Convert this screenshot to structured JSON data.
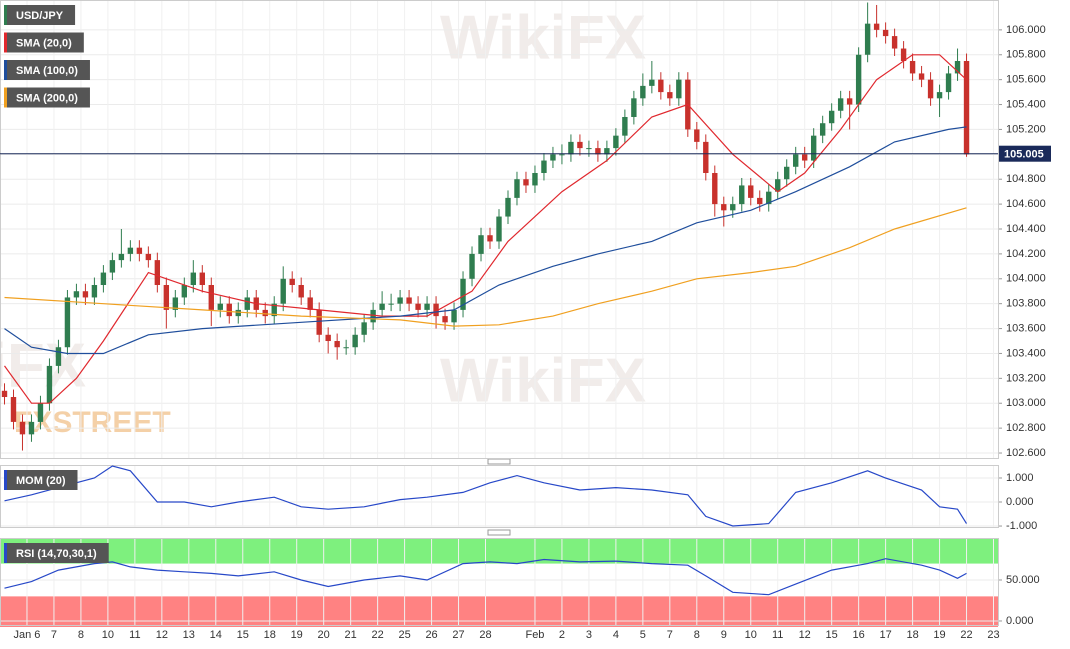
{
  "chart_data": [
    {
      "type": "candlestick",
      "title": "USD/JPY",
      "up_color": "#2f7d4f",
      "down_color": "#c8312c",
      "watermark": "WikiFX",
      "logo": "FXSTREET",
      "open": [
        103.1,
        103.05,
        102.85,
        102.75,
        102.85,
        103.0,
        103.3,
        103.45,
        103.85,
        103.9,
        103.85,
        103.95,
        104.05,
        104.15,
        104.2,
        104.25,
        104.2,
        104.15,
        103.95,
        103.75,
        103.85,
        103.95,
        104.05,
        103.95,
        103.75,
        103.8,
        103.7,
        103.75,
        103.85,
        103.75,
        103.7,
        103.8,
        104.0,
        103.95,
        103.85,
        103.75,
        103.55,
        103.5,
        103.45,
        103.45,
        103.55,
        103.65,
        103.75,
        103.8,
        103.8,
        103.85,
        103.8,
        103.75,
        103.8,
        103.7,
        103.65,
        103.75,
        104.0,
        104.2,
        104.35,
        104.3,
        104.5,
        104.65,
        104.8,
        104.75,
        104.85,
        104.95,
        105.0,
        105.0,
        105.1,
        105.05,
        105.05,
        105.0,
        105.05,
        105.15,
        105.3,
        105.45,
        105.55,
        105.6,
        105.5,
        105.45,
        105.6,
        105.2,
        105.1,
        104.85,
        104.6,
        104.55,
        104.6,
        104.75,
        104.65,
        104.6,
        104.7,
        104.8,
        104.9,
        105.0,
        104.95,
        105.15,
        105.25,
        105.35,
        105.45,
        105.4,
        105.8,
        106.05,
        106.0,
        105.95,
        105.85,
        105.75,
        105.65,
        105.6,
        105.45,
        105.5,
        105.65,
        105.75
      ],
      "high": [
        103.16,
        103.11,
        102.91,
        102.91,
        103.06,
        103.36,
        103.51,
        103.91,
        103.96,
        103.96,
        104.01,
        104.11,
        104.21,
        104.4,
        104.31,
        104.31,
        104.26,
        104.21,
        104.01,
        103.91,
        104.01,
        104.15,
        104.11,
        104.01,
        103.86,
        103.86,
        103.81,
        103.91,
        103.91,
        103.81,
        103.86,
        104.1,
        104.06,
        104.01,
        103.91,
        103.81,
        103.61,
        103.56,
        103.51,
        103.61,
        103.71,
        103.81,
        103.9,
        103.88,
        103.91,
        103.91,
        103.86,
        103.86,
        103.86,
        103.76,
        103.81,
        104.06,
        104.26,
        104.41,
        104.41,
        104.56,
        104.71,
        104.86,
        104.86,
        104.91,
        105.01,
        105.06,
        105.08,
        105.16,
        105.16,
        105.11,
        105.11,
        105.11,
        105.21,
        105.36,
        105.51,
        105.65,
        105.75,
        105.66,
        105.56,
        105.66,
        105.66,
        105.26,
        105.16,
        104.91,
        104.66,
        104.66,
        104.81,
        104.81,
        104.71,
        104.76,
        104.86,
        104.96,
        105.06,
        105.06,
        105.21,
        105.31,
        105.41,
        105.51,
        105.51,
        105.86,
        106.22,
        106.2,
        106.06,
        106.01,
        105.91,
        105.81,
        105.71,
        105.66,
        105.56,
        105.71,
        105.85,
        105.81
      ],
      "low": [
        102.99,
        102.79,
        102.62,
        102.69,
        102.79,
        102.94,
        103.24,
        103.39,
        103.79,
        103.79,
        103.79,
        103.89,
        103.99,
        104.09,
        104.14,
        104.14,
        104.09,
        103.89,
        103.6,
        103.69,
        103.79,
        103.89,
        103.89,
        103.62,
        103.69,
        103.64,
        103.64,
        103.69,
        103.69,
        103.64,
        103.64,
        103.74,
        103.89,
        103.79,
        103.69,
        103.49,
        103.4,
        103.35,
        103.39,
        103.39,
        103.49,
        103.59,
        103.69,
        103.74,
        103.74,
        103.74,
        103.69,
        103.69,
        103.6,
        103.59,
        103.59,
        103.69,
        103.94,
        104.14,
        104.24,
        104.24,
        104.44,
        104.59,
        104.69,
        104.69,
        104.79,
        104.89,
        104.92,
        104.94,
        104.99,
        104.98,
        104.94,
        104.94,
        104.99,
        105.09,
        105.24,
        105.39,
        105.49,
        105.44,
        105.39,
        105.39,
        105.14,
        105.04,
        104.79,
        104.5,
        104.42,
        104.49,
        104.54,
        104.59,
        104.54,
        104.54,
        104.64,
        104.74,
        104.84,
        104.89,
        104.89,
        105.09,
        105.19,
        105.29,
        105.2,
        105.34,
        105.74,
        105.94,
        105.89,
        105.79,
        105.69,
        105.59,
        105.54,
        105.39,
        105.3,
        105.44,
        105.59,
        104.98
      ],
      "close": [
        103.05,
        102.85,
        102.75,
        102.85,
        103.0,
        103.3,
        103.45,
        103.85,
        103.9,
        103.85,
        103.95,
        104.05,
        104.15,
        104.2,
        104.25,
        104.2,
        104.15,
        103.95,
        103.75,
        103.85,
        103.95,
        104.05,
        103.95,
        103.75,
        103.8,
        103.7,
        103.75,
        103.85,
        103.75,
        103.7,
        103.8,
        104.0,
        103.95,
        103.85,
        103.75,
        103.55,
        103.5,
        103.45,
        103.45,
        103.55,
        103.65,
        103.75,
        103.8,
        103.8,
        103.85,
        103.8,
        103.75,
        103.8,
        103.7,
        103.65,
        103.75,
        104.0,
        104.2,
        104.35,
        104.3,
        104.5,
        104.65,
        104.8,
        104.75,
        104.85,
        104.95,
        105.0,
        105.0,
        105.1,
        105.05,
        105.05,
        105.0,
        105.05,
        105.15,
        105.3,
        105.45,
        105.55,
        105.6,
        105.5,
        105.45,
        105.6,
        105.2,
        105.1,
        104.85,
        104.6,
        104.55,
        104.6,
        104.75,
        104.65,
        104.6,
        104.7,
        104.8,
        104.9,
        105.0,
        104.95,
        105.15,
        105.25,
        105.35,
        105.45,
        105.4,
        105.8,
        106.05,
        106.0,
        105.95,
        105.85,
        105.75,
        105.65,
        105.6,
        105.45,
        105.5,
        105.65,
        105.75,
        105.0
      ],
      "series": [
        {
          "name": "SMA (20,0)",
          "color": "#e0282e",
          "x": [
            0,
            3,
            5,
            8,
            11,
            16,
            22,
            28,
            35,
            42,
            47,
            52,
            56,
            62,
            67,
            72,
            76,
            81,
            86,
            89,
            93,
            97,
            101,
            104,
            107
          ],
          "values": [
            103.3,
            103.0,
            103.0,
            103.2,
            103.5,
            104.05,
            103.9,
            103.8,
            103.75,
            103.7,
            103.7,
            103.9,
            104.3,
            104.7,
            104.95,
            105.3,
            105.4,
            105.0,
            104.7,
            104.85,
            105.2,
            105.6,
            105.8,
            105.8,
            105.6
          ]
        },
        {
          "name": "SMA (100,0)",
          "color": "#1f4e9c",
          "x": [
            0,
            3,
            7,
            11,
            16,
            22,
            33,
            44,
            50,
            55,
            61,
            66,
            72,
            77,
            83,
            88,
            94,
            99,
            105,
            107
          ],
          "values": [
            103.6,
            103.45,
            103.4,
            103.4,
            103.55,
            103.6,
            103.65,
            103.7,
            103.75,
            103.95,
            104.1,
            104.2,
            104.3,
            104.45,
            104.55,
            104.7,
            104.9,
            105.1,
            105.2,
            105.22
          ]
        },
        {
          "name": "SMA (200,0)",
          "color": "#f0a020",
          "x": [
            0,
            11,
            22,
            33,
            44,
            50,
            55,
            61,
            66,
            72,
            77,
            83,
            88,
            94,
            99,
            107
          ],
          "values": [
            103.85,
            103.8,
            103.75,
            103.7,
            103.67,
            103.62,
            103.63,
            103.7,
            103.8,
            103.9,
            104.0,
            104.05,
            104.1,
            104.25,
            104.4,
            104.57
          ]
        }
      ],
      "last_price": 105.005,
      "last_color": "#1a2a5a",
      "ylim": [
        102.56,
        106.24
      ],
      "yticks": [
        {
          "value": 102.6,
          "label": "102.600"
        },
        {
          "value": 102.8,
          "label": "102.800"
        },
        {
          "value": 103,
          "label": "103.000"
        },
        {
          "value": 103.2,
          "label": "103.200"
        },
        {
          "value": 103.4,
          "label": "103.400"
        },
        {
          "value": 103.6,
          "label": "103.600"
        },
        {
          "value": 103.8,
          "label": "103.800"
        },
        {
          "value": 104,
          "label": "104.000"
        },
        {
          "value": 104.2,
          "label": "104.200"
        },
        {
          "value": 104.4,
          "label": "104.400"
        },
        {
          "value": 104.6,
          "label": "104.600"
        },
        {
          "value": 104.8,
          "label": "104.800"
        },
        {
          "value": 105,
          "label": "105.000"
        },
        {
          "value": 105.2,
          "label": "105.200"
        },
        {
          "value": 105.4,
          "label": "105.400"
        },
        {
          "value": 105.6,
          "label": "105.600"
        },
        {
          "value": 105.8,
          "label": "105.800"
        },
        {
          "value": 106,
          "label": "106.000"
        }
      ],
      "xlim": [
        -0.5,
        110.5
      ],
      "xticks": [
        {
          "value": 2.5,
          "label": "Jan 6"
        },
        {
          "value": 5.5,
          "label": "7"
        },
        {
          "value": 8.5,
          "label": "8"
        },
        {
          "value": 11.5,
          "label": "10"
        },
        {
          "value": 14.5,
          "label": "11"
        },
        {
          "value": 17.5,
          "label": "12"
        },
        {
          "value": 20.5,
          "label": "13"
        },
        {
          "value": 23.5,
          "label": "14"
        },
        {
          "value": 26.5,
          "label": "15"
        },
        {
          "value": 29.5,
          "label": "18"
        },
        {
          "value": 32.5,
          "label": "19"
        },
        {
          "value": 35.5,
          "label": "20"
        },
        {
          "value": 38.5,
          "label": "21"
        },
        {
          "value": 41.5,
          "label": "22"
        },
        {
          "value": 44.5,
          "label": "25"
        },
        {
          "value": 47.5,
          "label": "26"
        },
        {
          "value": 50.5,
          "label": "27"
        },
        {
          "value": 53.5,
          "label": "28"
        },
        {
          "value": 59,
          "label": "Feb"
        },
        {
          "value": 62,
          "label": "2"
        },
        {
          "value": 65,
          "label": "3"
        },
        {
          "value": 68,
          "label": "4"
        },
        {
          "value": 71,
          "label": "5"
        },
        {
          "value": 74,
          "label": "7"
        },
        {
          "value": 77,
          "label": "8"
        },
        {
          "value": 80,
          "label": "9"
        },
        {
          "value": 83,
          "label": "10"
        },
        {
          "value": 86,
          "label": "11"
        },
        {
          "value": 89,
          "label": "12"
        },
        {
          "value": 92,
          "label": "15"
        },
        {
          "value": 95,
          "label": "16"
        },
        {
          "value": 98,
          "label": "17"
        },
        {
          "value": 101,
          "label": "18"
        },
        {
          "value": 104,
          "label": "19"
        },
        {
          "value": 107,
          "label": "22"
        },
        {
          "value": 110,
          "label": "23"
        }
      ],
      "grid": true
    },
    {
      "type": "line",
      "series": [
        {
          "name": "MOM (20)",
          "color": "#2748c8",
          "x": [
            0,
            3,
            6,
            10,
            12,
            14,
            17,
            20,
            23,
            26,
            30,
            33,
            36,
            40,
            44,
            47,
            51,
            54,
            57,
            60,
            64,
            68,
            72,
            76,
            78,
            81,
            85,
            88,
            92,
            96,
            98,
            102,
            104,
            106,
            107
          ],
          "values": [
            0.05,
            0.3,
            0.6,
            1,
            1.5,
            1.3,
            0,
            0,
            -0.2,
            0,
            0.2,
            -0.2,
            -0.3,
            -0.2,
            0.1,
            0.2,
            0.4,
            0.8,
            1.1,
            0.8,
            0.5,
            0.6,
            0.5,
            0.3,
            -0.6,
            -1,
            -0.9,
            0.4,
            0.8,
            1.3,
            1,
            0.5,
            -0.2,
            -0.3,
            -0.9
          ]
        }
      ],
      "ylim": [
        -1.04,
        1.54
      ],
      "yticks": [
        {
          "value": -1,
          "label": "-1.000"
        },
        {
          "value": 0,
          "label": "0.000"
        },
        {
          "value": 1,
          "label": "1.000"
        }
      ],
      "grid": true
    },
    {
      "type": "line",
      "series": [
        {
          "name": "RSI (14,70,30,1)",
          "color": "#2748c8",
          "x": [
            0,
            3,
            6,
            10,
            12,
            14,
            17,
            20,
            23,
            26,
            30,
            33,
            36,
            40,
            44,
            47,
            51,
            54,
            57,
            60,
            64,
            68,
            72,
            76,
            78,
            81,
            85,
            88,
            92,
            96,
            98,
            102,
            104,
            106,
            107
          ],
          "values": [
            40,
            48,
            62,
            70,
            72,
            66,
            62,
            60,
            58,
            55,
            60,
            50,
            42,
            50,
            55,
            50,
            70,
            72,
            70,
            75,
            72,
            73,
            70,
            68,
            55,
            35,
            32,
            45,
            62,
            70,
            76,
            68,
            62,
            52,
            58
          ]
        }
      ],
      "overbought": 70,
      "oversold": 30,
      "overbought_color": "#7ef07e",
      "oversold_color": "#ff8282",
      "ylim": [
        -4.9,
        101.2
      ],
      "yticks": [
        {
          "value": 0,
          "label": "0.000"
        },
        {
          "value": 50,
          "label": "50.000"
        }
      ],
      "grid": true
    }
  ]
}
